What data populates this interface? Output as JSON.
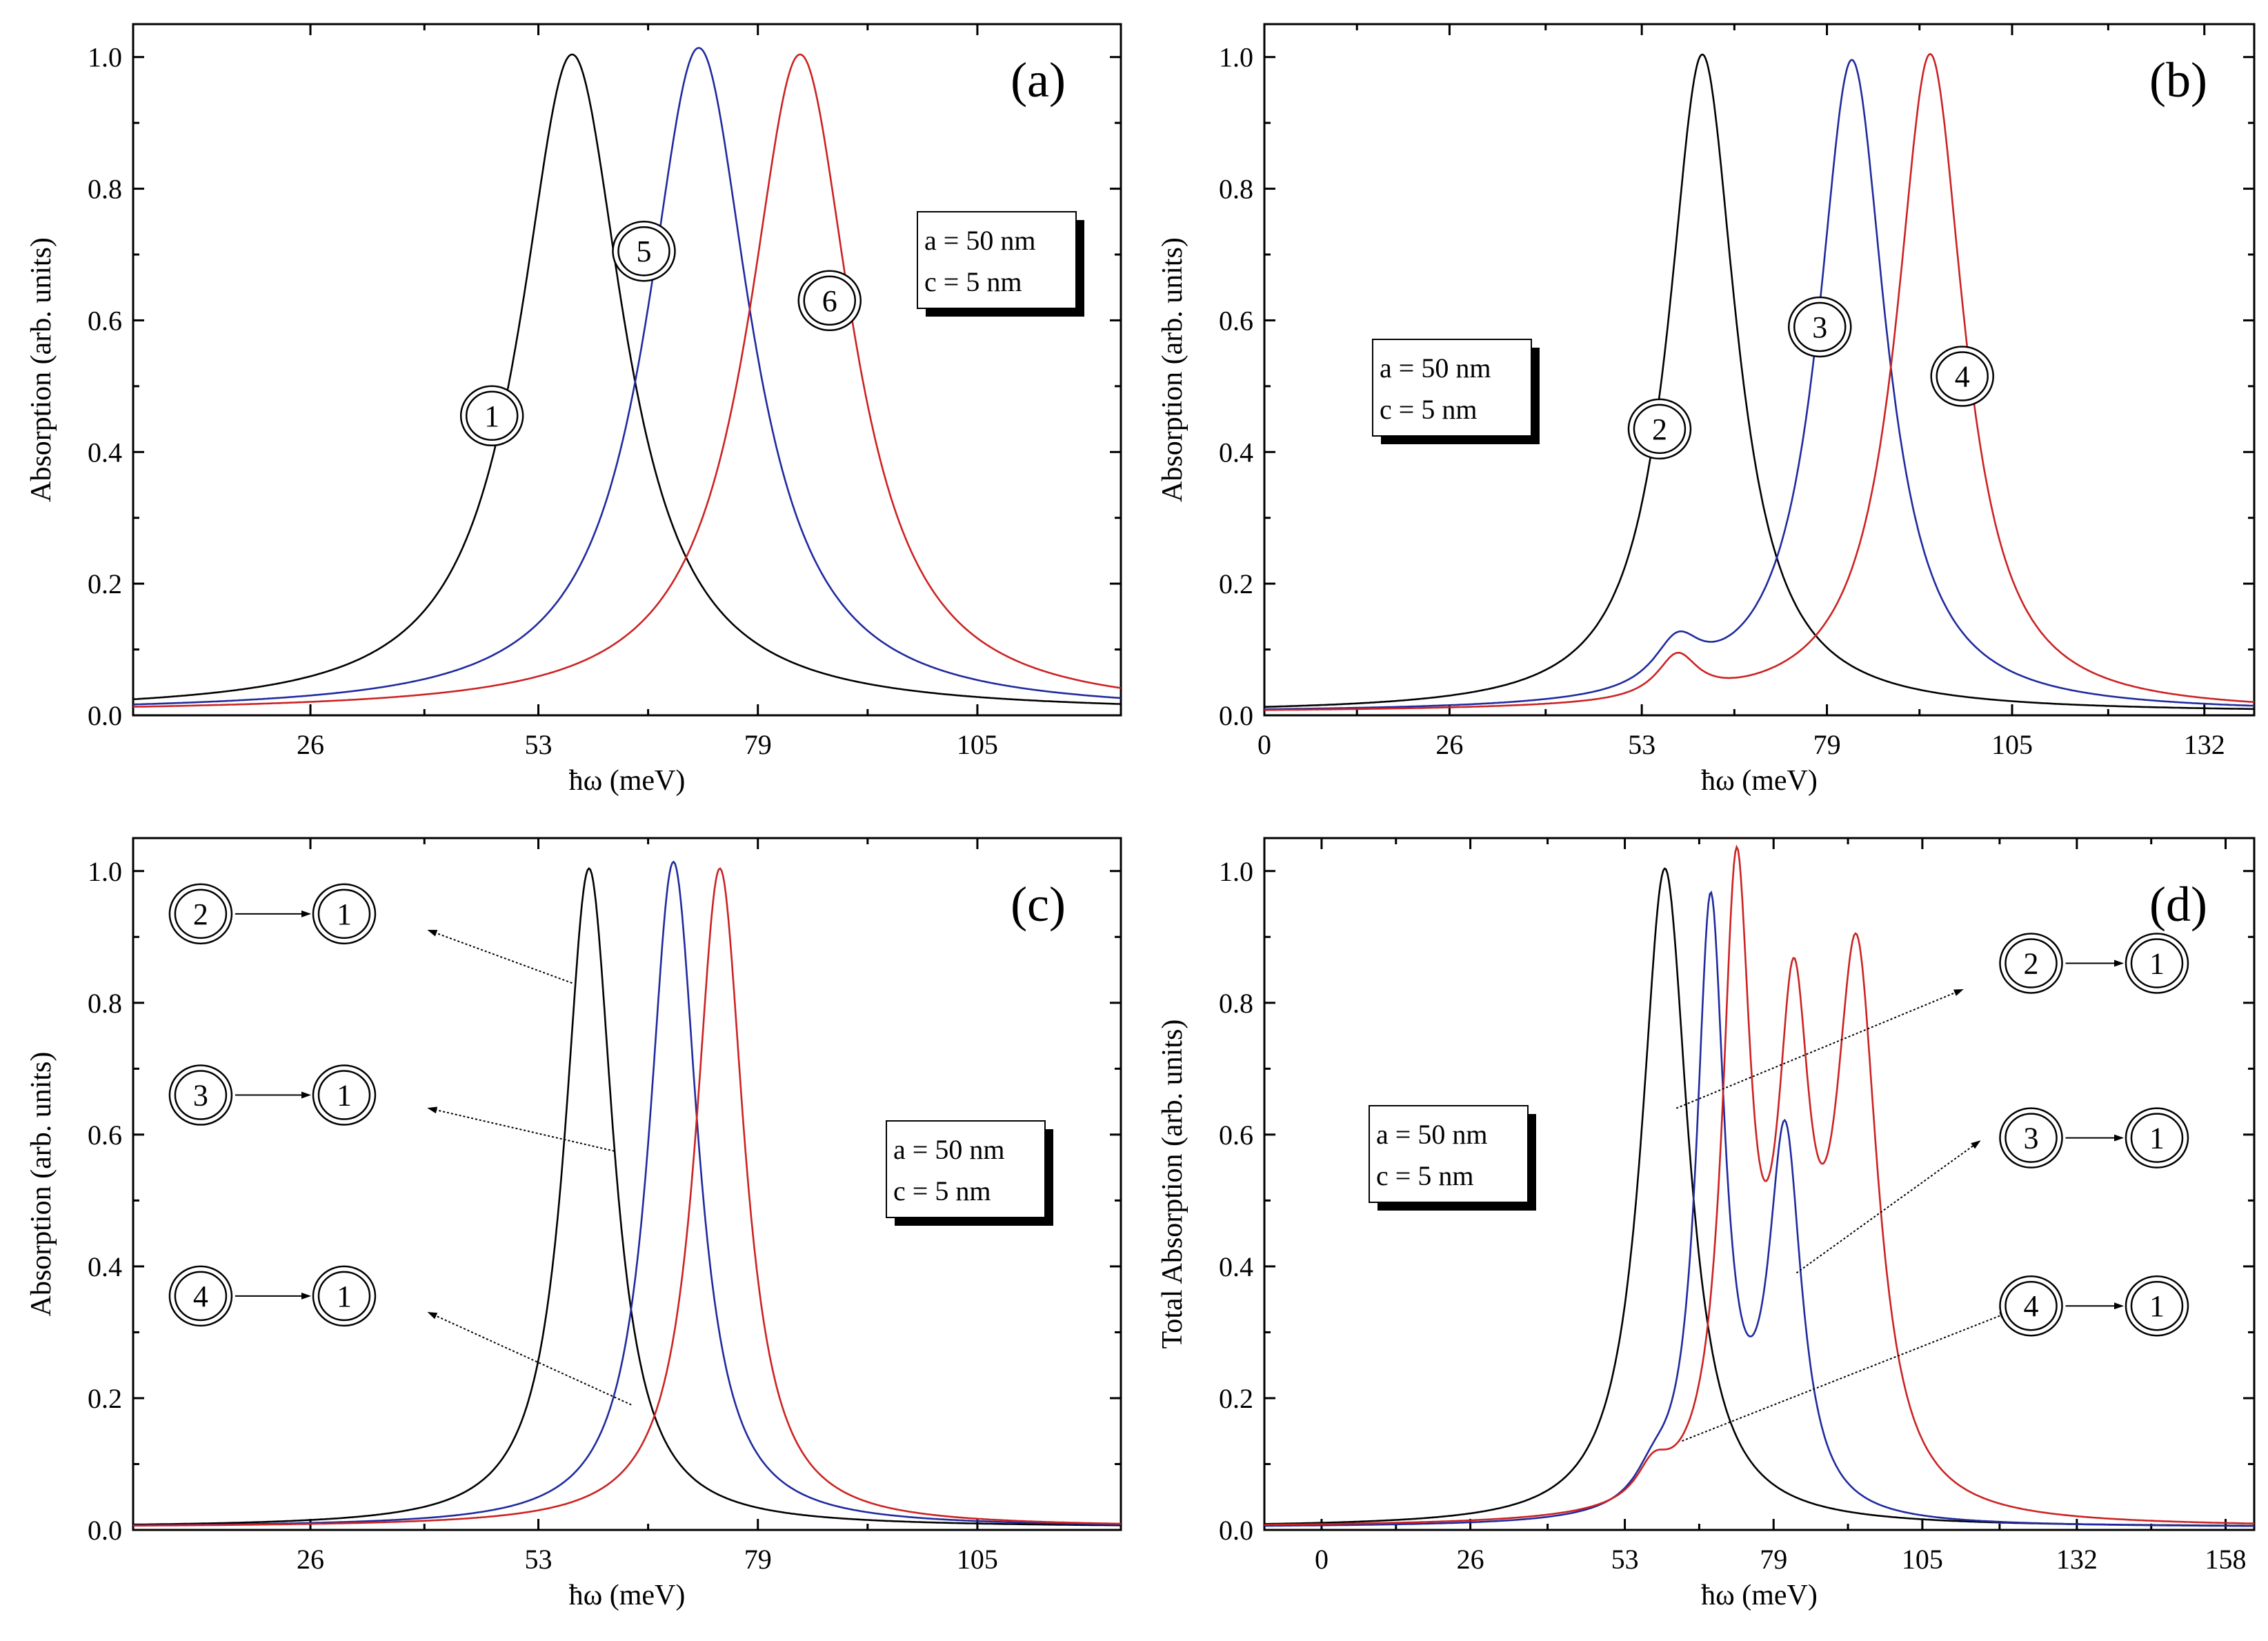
{
  "chart_data": [
    {
      "type": "line",
      "panel": "(a)",
      "xlabel": "ħω (meV)",
      "ylabel": "Absorption (arb. units)",
      "xlim": [
        5,
        122
      ],
      "ylim": [
        0,
        1.05
      ],
      "xticks": [
        26,
        53,
        79,
        105
      ],
      "yticks": [
        "0.0",
        "0.2",
        "0.4",
        "0.6",
        "0.8",
        "1.0"
      ],
      "legend": [
        "a = 50 nm",
        "c = 5 nm"
      ],
      "series": [
        {
          "name": "1",
          "color": "#000000",
          "peaks": [
            [
              57,
              1.0,
              7.5
            ]
          ]
        },
        {
          "name": "5",
          "color": "#1f2a9e",
          "peaks": [
            [
              72,
              1.01,
              7.5
            ]
          ]
        },
        {
          "name": "6",
          "color": "#cc2222",
          "peaks": [
            [
              84,
              1.0,
              7.5
            ]
          ]
        }
      ],
      "curve_labels": [
        {
          "text": "1",
          "x": 47.5,
          "y": 0.455
        },
        {
          "text": "5",
          "x": 65.5,
          "y": 0.705
        },
        {
          "text": "6",
          "x": 87.5,
          "y": 0.63
        }
      ],
      "arrows": []
    },
    {
      "type": "line",
      "panel": "(b)",
      "xlabel": "ħω (meV)",
      "ylabel": "Absorption (arb. units)",
      "xlim": [
        0,
        139
      ],
      "ylim": [
        0,
        1.05
      ],
      "xticks": [
        0,
        26,
        53,
        79,
        105,
        132
      ],
      "yticks": [
        "0.0",
        "0.2",
        "0.4",
        "0.6",
        "0.8",
        "1.0"
      ],
      "legend": [
        "a = 50 nm",
        "c = 5 nm"
      ],
      "series": [
        {
          "name": "2",
          "color": "#000000",
          "peaks": [
            [
              61.5,
              1.0,
              5.8
            ]
          ]
        },
        {
          "name": "3",
          "color": "#1f2a9e",
          "peaks": [
            [
              82.5,
              0.99,
              5.8
            ],
            [
              58,
              0.07,
              4
            ]
          ]
        },
        {
          "name": "4",
          "color": "#cc2222",
          "peaks": [
            [
              93.5,
              1.0,
              5.8
            ],
            [
              58,
              0.065,
              3.5
            ]
          ]
        }
      ],
      "curve_labels": [
        {
          "text": "2",
          "x": 55.5,
          "y": 0.435
        },
        {
          "text": "3",
          "x": 78,
          "y": 0.59
        },
        {
          "text": "4",
          "x": 98,
          "y": 0.515
        }
      ],
      "arrows": []
    },
    {
      "type": "line",
      "panel": "(c)",
      "xlabel": "ħω (meV)",
      "ylabel": "Absorption (arb. units)",
      "xlim": [
        5,
        122
      ],
      "ylim": [
        0,
        1.05
      ],
      "xticks": [
        26,
        53,
        79,
        105
      ],
      "yticks": [
        "0.0",
        "0.2",
        "0.4",
        "0.6",
        "0.8",
        "1.0"
      ],
      "legend": [
        "a = 50 nm",
        "c = 5 nm"
      ],
      "series": [
        {
          "name": "2→1",
          "color": "#000000",
          "peaks": [
            [
              59,
              1.0,
              3.5
            ]
          ]
        },
        {
          "name": "3→1",
          "color": "#1f2a9e",
          "peaks": [
            [
              69,
              1.01,
              3.5
            ]
          ]
        },
        {
          "name": "4→1",
          "color": "#cc2222",
          "peaks": [
            [
              74.5,
              1.0,
              3.5
            ]
          ]
        }
      ],
      "transition_labels": [
        {
          "from": "2",
          "to": "1",
          "y": 0.935
        },
        {
          "from": "3",
          "to": "1",
          "y": 0.66
        },
        {
          "from": "4",
          "to": "1",
          "y": 0.355
        }
      ],
      "arrows": [
        {
          "from": [
            57,
            0.83
          ],
          "to": [
            40,
            0.91
          ]
        },
        {
          "from": [
            62,
            0.575
          ],
          "to": [
            40,
            0.64
          ]
        },
        {
          "from": [
            64,
            0.19
          ],
          "to": [
            40,
            0.33
          ]
        }
      ]
    },
    {
      "type": "line",
      "panel": "(d)",
      "xlabel": "ħω (meV)",
      "ylabel": "Total Absorption (arb. units)",
      "xlim": [
        -10,
        163
      ],
      "ylim": [
        0,
        1.05
      ],
      "xticks": [
        0,
        26,
        53,
        79,
        105,
        132,
        158
      ],
      "yticks": [
        "0.0",
        "0.2",
        "0.4",
        "0.6",
        "0.8",
        "1.0"
      ],
      "legend": [
        "a = 50 nm",
        "c = 5 nm"
      ],
      "series": [
        {
          "name": "2→1",
          "color": "#000000",
          "peaks": [
            [
              60,
              1.0,
              5.0
            ]
          ]
        },
        {
          "name": "3→1",
          "color": "#1f2a9e",
          "peaks": [
            [
              68,
              0.92,
              3.0
            ],
            [
              81,
              0.57,
              3.5
            ],
            [
              58,
              0.04,
              4
            ]
          ]
        },
        {
          "name": "4→1",
          "color": "#cc2222",
          "peaks": [
            [
              72.5,
              0.92,
              3.0
            ],
            [
              82.5,
              0.67,
              3.5
            ],
            [
              93.5,
              0.82,
              4.5
            ],
            [
              58,
              0.05,
              3.5
            ]
          ]
        }
      ],
      "transition_labels": [
        {
          "from": "2",
          "to": "1",
          "y": 0.86
        },
        {
          "from": "3",
          "to": "1",
          "y": 0.595
        },
        {
          "from": "4",
          "to": "1",
          "y": 0.34
        }
      ],
      "arrows": [
        {
          "from": [
            62,
            0.64
          ],
          "to": [
            112,
            0.82
          ]
        },
        {
          "from": [
            83,
            0.39
          ],
          "to": [
            115,
            0.59
          ]
        },
        {
          "from": [
            63,
            0.135
          ],
          "to": [
            120,
            0.33
          ]
        }
      ]
    }
  ]
}
